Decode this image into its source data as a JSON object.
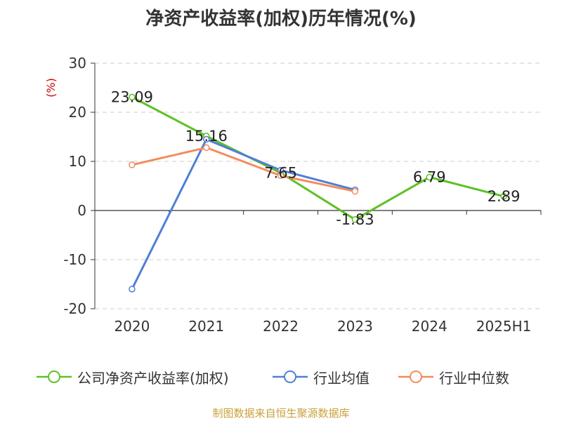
{
  "title": "净资产收益率(加权)历年情况(%)",
  "source_note": "制图数据来自恒生聚源数据库",
  "chart_data": {
    "type": "line",
    "title": "净资产收益率(加权)历年情况(%)",
    "ylabel": "(%)",
    "xlabel": "",
    "categories": [
      "2020",
      "2021",
      "2022",
      "2023",
      "2024",
      "2025H1"
    ],
    "ylim": [
      -20,
      30
    ],
    "yticks": [
      30,
      20,
      10,
      0,
      -10,
      -20
    ],
    "grid": true,
    "legend_position": "bottom",
    "series": [
      {
        "name": "公司净资产收益率(加权)",
        "color": "#5dc125",
        "values": [
          23.09,
          15.16,
          7.65,
          -1.83,
          6.79,
          2.89
        ],
        "labels": [
          "23.09",
          "15.16",
          "7.65",
          "-1.83",
          "6.79",
          "2.89"
        ]
      },
      {
        "name": "行业均值",
        "color": "#4f7fd6",
        "values": [
          -16.0,
          14.5,
          8.2,
          4.2,
          null,
          null
        ]
      },
      {
        "name": "行业中位数",
        "color": "#f48b5b",
        "values": [
          9.3,
          12.8,
          7.1,
          3.9,
          null,
          null
        ]
      }
    ]
  }
}
